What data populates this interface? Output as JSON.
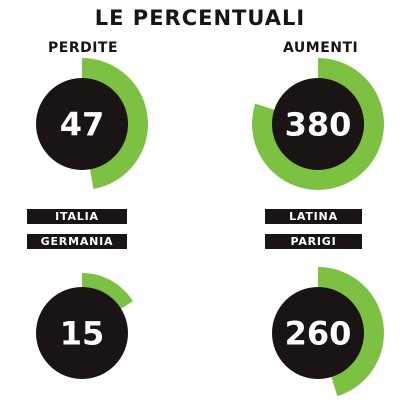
{
  "title": "LE PERCENTUALI",
  "labels": {
    "left": "PERDITE",
    "right": "AUMENTI"
  },
  "colors": {
    "ring": "#7dc142",
    "circle": "#1a1414",
    "text": "#ffffff"
  },
  "chart_data": {
    "type": "pie",
    "gauges": [
      {
        "group": "PERDITE",
        "name": "ITALIA",
        "value": 47
      },
      {
        "group": "AUMENTI",
        "name": "LATINA",
        "value": 380
      },
      {
        "group": "PERDITE",
        "name": "GERMANIA",
        "value": 15
      },
      {
        "group": "AUMENTI",
        "name": "PARIGI",
        "value": 260
      }
    ]
  }
}
